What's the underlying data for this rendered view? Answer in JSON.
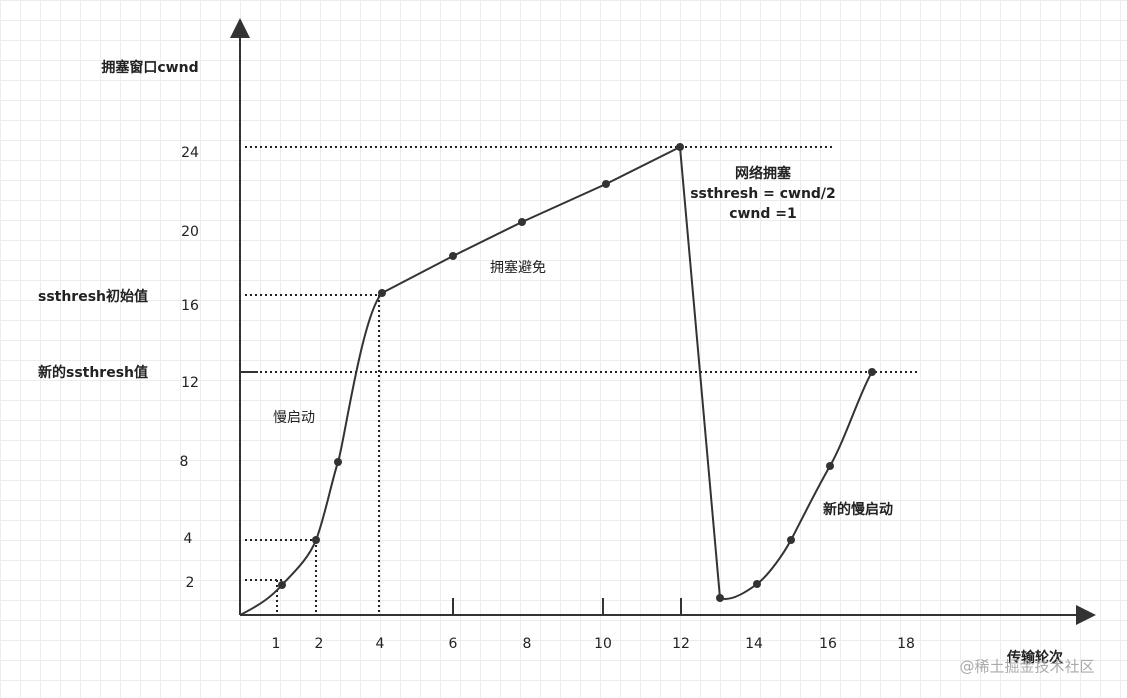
{
  "diagram": {
    "y_axis_title": "拥塞窗口cwnd",
    "x_axis_title": "传输轮次",
    "y_tick_labels": [
      "24",
      "20",
      "16",
      "12",
      "8",
      "4",
      "2"
    ],
    "x_tick_labels": [
      "1",
      "2",
      "4",
      "6",
      "8",
      "10",
      "12",
      "14",
      "16",
      "18"
    ],
    "side_labels": [
      "ssthresh初始值",
      "新的ssthresh值"
    ],
    "annotations": {
      "slow_start": "慢启动",
      "congestion_avoidance": "拥塞避免",
      "congestion": [
        "网络拥塞",
        "ssthresh = cwnd/2",
        "cwnd =1"
      ],
      "new_slow_start": "新的慢启动"
    },
    "watermark": "@稀土掘金技术社区"
  }
}
